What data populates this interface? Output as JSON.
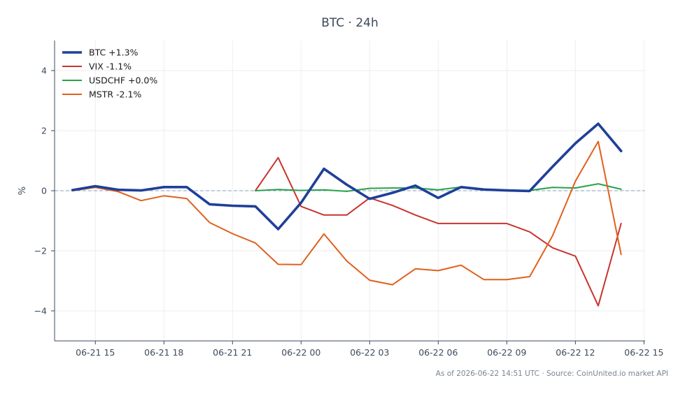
{
  "chart_data": {
    "type": "line",
    "title": "BTC · 24h",
    "xlabel": "",
    "ylabel": "%",
    "x_ticks": [
      "06-21 15",
      "06-21 18",
      "06-21 21",
      "06-22 00",
      "06-22 03",
      "06-22 06",
      "06-22 09",
      "06-22 12",
      "06-22 15"
    ],
    "xlim": [
      "06-21 13:13",
      "06-22 15:03"
    ],
    "y_ticks": [
      4,
      2,
      0,
      -2,
      -4
    ],
    "ylim": [
      -5,
      5
    ],
    "grid": true,
    "zero_line": true,
    "legend_position": "top-left",
    "series": [
      {
        "name": "BTC +1.3%",
        "color": "#1f3f99",
        "emphasis": true,
        "x": [
          "06-21 14:00",
          "06-21 15:00",
          "06-21 16:00",
          "06-21 17:00",
          "06-21 18:00",
          "06-21 19:00",
          "06-21 20:00",
          "06-21 21:00",
          "06-21 22:00",
          "06-21 23:00",
          "06-22 00:00",
          "06-22 01:00",
          "06-22 02:00",
          "06-22 03:00",
          "06-22 04:00",
          "06-22 05:00",
          "06-22 06:00",
          "06-22 07:00",
          "06-22 08:00",
          "06-22 09:00",
          "06-22 10:00",
          "06-22 11:00",
          "06-22 12:00",
          "06-22 13:00",
          "06-22 14:00"
        ],
        "values": [
          0.02,
          0.15,
          0.03,
          0.01,
          0.12,
          0.12,
          -0.45,
          -0.5,
          -0.52,
          -1.28,
          -0.4,
          0.73,
          0.2,
          -0.27,
          -0.07,
          0.17,
          -0.24,
          0.12,
          0.04,
          0.01,
          -0.01,
          0.8,
          1.58,
          2.23,
          1.32
        ]
      },
      {
        "name": "VIX -1.1%",
        "color": "#c8352e",
        "emphasis": false,
        "x": [
          "06-21 22:00",
          "06-21 23:00",
          "06-22 00:00",
          "06-22 01:00",
          "06-22 02:00",
          "06-22 03:00",
          "06-22 04:00",
          "06-22 05:00",
          "06-22 06:00",
          "06-22 07:00",
          "06-22 08:00",
          "06-22 09:00",
          "06-22 10:00",
          "06-22 11:00",
          "06-22 12:00",
          "06-22 13:00",
          "06-22 14:00"
        ],
        "values": [
          0.0,
          1.1,
          -0.52,
          -0.81,
          -0.81,
          -0.24,
          -0.49,
          -0.81,
          -1.09,
          -1.09,
          -1.09,
          -1.09,
          -1.37,
          -1.9,
          -2.18,
          -3.83,
          -1.09
        ]
      },
      {
        "name": "USDCHF +0.0%",
        "color": "#2aa14b",
        "emphasis": false,
        "x": [
          "06-21 22:00",
          "06-21 23:00",
          "06-22 00:00",
          "06-22 01:00",
          "06-22 02:00",
          "06-22 03:00",
          "06-22 04:00",
          "06-22 05:00",
          "06-22 06:00",
          "06-22 07:00",
          "06-22 08:00",
          "06-22 09:00",
          "06-22 10:00",
          "06-22 11:00",
          "06-22 12:00",
          "06-22 13:00",
          "06-22 14:00"
        ],
        "values": [
          0.0,
          0.04,
          0.01,
          0.03,
          -0.02,
          0.08,
          0.09,
          0.09,
          0.03,
          0.12,
          0.04,
          0.0,
          0.01,
          0.11,
          0.09,
          0.23,
          0.05
        ]
      },
      {
        "name": "MSTR -2.1%",
        "color": "#e0601d",
        "emphasis": false,
        "x": [
          "06-21 14:00",
          "06-21 15:00",
          "06-21 16:00",
          "06-21 17:00",
          "06-21 18:00",
          "06-21 19:00",
          "06-21 20:00",
          "06-21 21:00",
          "06-21 22:00",
          "06-21 23:00",
          "06-22 00:00",
          "06-22 01:00",
          "06-22 02:00",
          "06-22 03:00",
          "06-22 04:00",
          "06-22 05:00",
          "06-22 06:00",
          "06-22 07:00",
          "06-22 08:00",
          "06-22 09:00",
          "06-22 10:00",
          "06-22 11:00",
          "06-22 12:00",
          "06-22 13:00",
          "06-22 14:00"
        ],
        "values": [
          0.0,
          0.11,
          -0.03,
          -0.33,
          -0.17,
          -0.26,
          -1.06,
          -1.43,
          -1.74,
          -2.45,
          -2.46,
          -1.44,
          -2.34,
          -2.98,
          -3.13,
          -2.6,
          -2.66,
          -2.48,
          -2.96,
          -2.96,
          -2.86,
          -1.5,
          0.32,
          1.64,
          -2.12
        ]
      }
    ]
  },
  "footer": {
    "source_note": "As of 2026-06-22 14:51 UTC · Source: CoinUnited.io market API"
  }
}
